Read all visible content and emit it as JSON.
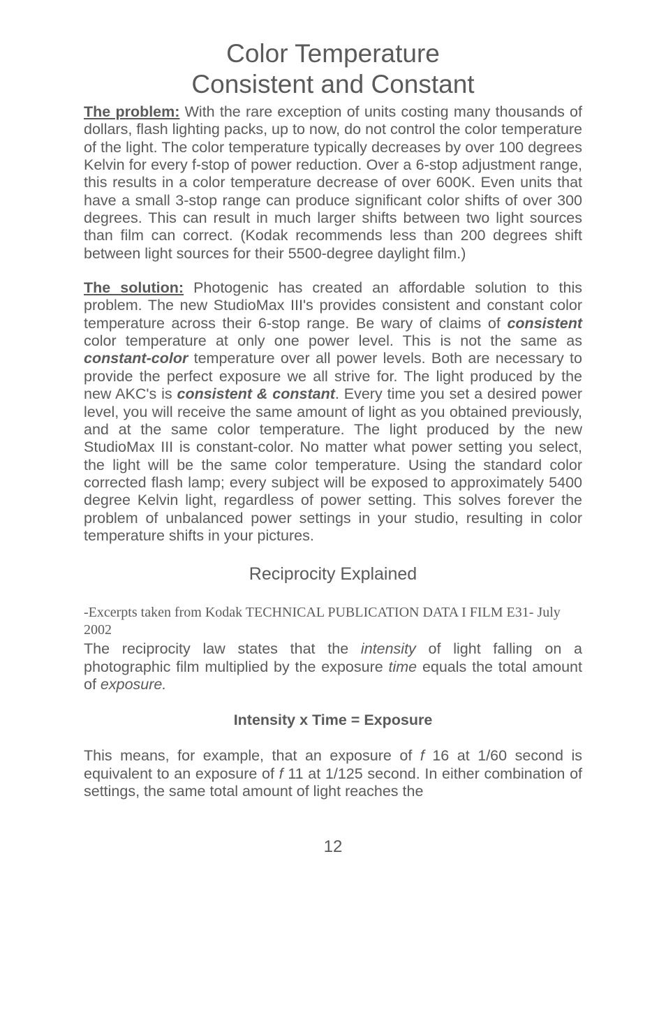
{
  "title_line1": "Color Temperature",
  "title_line2": "Consistent and Constant",
  "para1": {
    "lead": "The problem:",
    "text": " With the rare exception of units costing many thousands of dollars, flash lighting packs, up to now, do not control the color temperature of the light.  The color temperature typically decreases by over 100 degrees Kelvin for every f-stop of power reduction. Over a 6-stop adjustment range, this results in a color temperature decrease of over 600K.  Even units that have a small 3-stop range can produce significant color shifts of over 300 degrees. This can result in much larger shifts between two light sources than film can correct. (Kodak recommends less than 200 degrees shift between light sources for their 5500-degree daylight film.)"
  },
  "para2": {
    "lead": "The solution:",
    "text1": "  Photogenic has created an affordable solution to this problem.  The new StudioMax III's provides consistent and constant color temperature across their 6-stop range.  Be wary of claims of ",
    "emph1": "consistent",
    "text2": " color temperature at only one power level.  This is not the same as ",
    "emph2": "constant-color",
    "text3": " temperature over all power levels. Both are necessary to provide the perfect exposure we all strive for. The light produced by the new AKC's is ",
    "emph3": "consistent & constant",
    "text4": ". Every time you set a desired power level, you will receive the same amount of light as you obtained previously, and at the same color temperature.  The light produced by the new StudioMax III is constant-color. No matter what power setting you select, the light will be the same color temperature.  Using the standard color corrected flash lamp; every subject will be exposed to approximately 5400 degree Kelvin light, regardless of power setting.  This solves forever the problem of unbalanced power settings in your studio, resulting in color temperature shifts in your pictures."
  },
  "section_heading": "Reciprocity Explained",
  "citation": "-Excerpts taken from Kodak TECHNICAL PUBLICATION DATA I FILM E31- July 2002",
  "para3": {
    "text1": "The reciprocity law states that the ",
    "emph1": "intensity",
    "text2": " of light falling on a photographic film multiplied by the exposure ",
    "emph2": "time",
    "text3": " equals the total amount of ",
    "emph3": "exposure."
  },
  "formula": {
    "part1": "Intensity x Time",
    "equals": " = ",
    "part2": "Exposure"
  },
  "para4": {
    "text1": "This means, for example, that an exposure of  ",
    "f1": "f ",
    "text2": "16 at 1/60 second is equivalent to an exposure of  ",
    "f2": "f ",
    "text3": "11 at 1/125 second. In either combination of settings, the same total amount of light reaches the"
  },
  "page_number": "12"
}
